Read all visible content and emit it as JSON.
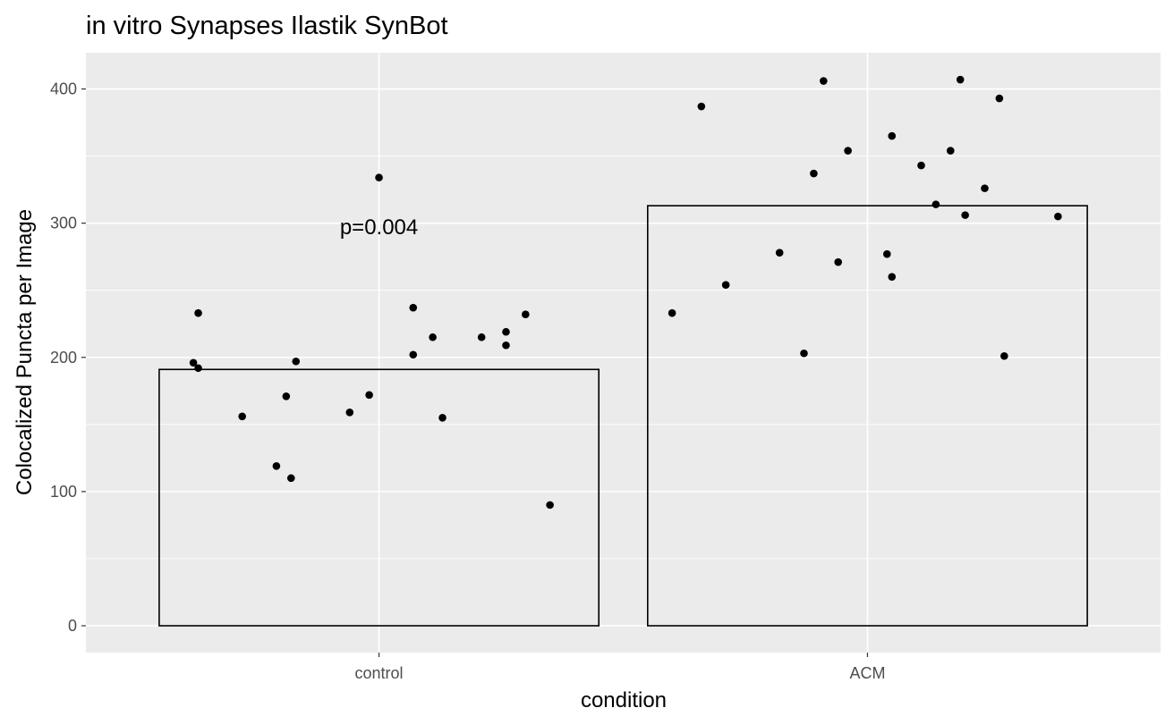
{
  "chart_data": {
    "type": "bar",
    "title": "in vitro Synapses Ilastik SynBot",
    "xlabel": "condition",
    "ylabel": "Colocalized Puncta per Image",
    "categories": [
      "control",
      "ACM"
    ],
    "values": [
      191,
      313
    ],
    "ylim": [
      -20,
      427
    ],
    "yticks": [
      0,
      100,
      200,
      300,
      400
    ],
    "grid": true,
    "annotation": {
      "text": "p=0.004",
      "x": "control",
      "y": 297
    },
    "points": [
      {
        "category": "control",
        "jitter": -0.38,
        "value": 196
      },
      {
        "category": "control",
        "jitter": -0.37,
        "value": 192
      },
      {
        "category": "control",
        "jitter": -0.37,
        "value": 233
      },
      {
        "category": "control",
        "jitter": -0.28,
        "value": 156
      },
      {
        "category": "control",
        "jitter": -0.21,
        "value": 119
      },
      {
        "category": "control",
        "jitter": -0.19,
        "value": 171
      },
      {
        "category": "control",
        "jitter": -0.18,
        "value": 110
      },
      {
        "category": "control",
        "jitter": -0.17,
        "value": 197
      },
      {
        "category": "control",
        "jitter": -0.06,
        "value": 159
      },
      {
        "category": "control",
        "jitter": -0.02,
        "value": 172
      },
      {
        "category": "control",
        "jitter": 0.0,
        "value": 334
      },
      {
        "category": "control",
        "jitter": 0.07,
        "value": 237
      },
      {
        "category": "control",
        "jitter": 0.07,
        "value": 202
      },
      {
        "category": "control",
        "jitter": 0.11,
        "value": 215
      },
      {
        "category": "control",
        "jitter": 0.13,
        "value": 155
      },
      {
        "category": "control",
        "jitter": 0.21,
        "value": 215
      },
      {
        "category": "control",
        "jitter": 0.26,
        "value": 219
      },
      {
        "category": "control",
        "jitter": 0.26,
        "value": 209
      },
      {
        "category": "control",
        "jitter": 0.3,
        "value": 232
      },
      {
        "category": "control",
        "jitter": 0.35,
        "value": 90
      },
      {
        "category": "ACM",
        "jitter": -0.4,
        "value": 233
      },
      {
        "category": "ACM",
        "jitter": -0.34,
        "value": 387
      },
      {
        "category": "ACM",
        "jitter": -0.29,
        "value": 254
      },
      {
        "category": "ACM",
        "jitter": -0.18,
        "value": 278
      },
      {
        "category": "ACM",
        "jitter": -0.13,
        "value": 203
      },
      {
        "category": "ACM",
        "jitter": -0.11,
        "value": 337
      },
      {
        "category": "ACM",
        "jitter": -0.09,
        "value": 406
      },
      {
        "category": "ACM",
        "jitter": -0.06,
        "value": 271
      },
      {
        "category": "ACM",
        "jitter": -0.04,
        "value": 354
      },
      {
        "category": "ACM",
        "jitter": 0.04,
        "value": 277
      },
      {
        "category": "ACM",
        "jitter": 0.05,
        "value": 365
      },
      {
        "category": "ACM",
        "jitter": 0.05,
        "value": 260
      },
      {
        "category": "ACM",
        "jitter": 0.11,
        "value": 343
      },
      {
        "category": "ACM",
        "jitter": 0.14,
        "value": 314
      },
      {
        "category": "ACM",
        "jitter": 0.17,
        "value": 354
      },
      {
        "category": "ACM",
        "jitter": 0.19,
        "value": 407
      },
      {
        "category": "ACM",
        "jitter": 0.2,
        "value": 306
      },
      {
        "category": "ACM",
        "jitter": 0.24,
        "value": 326
      },
      {
        "category": "ACM",
        "jitter": 0.27,
        "value": 393
      },
      {
        "category": "ACM",
        "jitter": 0.28,
        "value": 201
      },
      {
        "category": "ACM",
        "jitter": 0.39,
        "value": 305
      }
    ],
    "colors": {
      "panel": "#ebebeb",
      "grid": "#ffffff",
      "bar_fill": "none",
      "bar_stroke": "#000000",
      "point": "#000000"
    }
  }
}
